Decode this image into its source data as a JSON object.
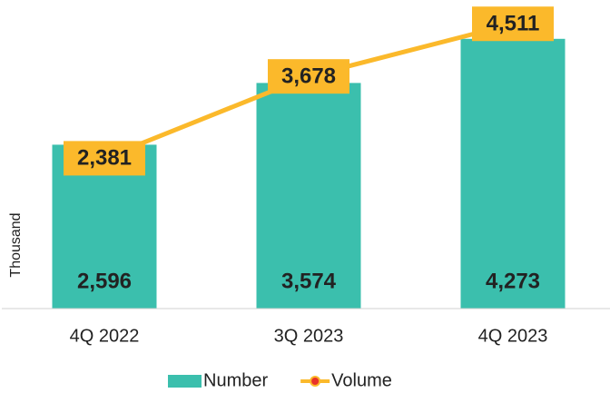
{
  "chart_data": {
    "type": "bar",
    "y_label": "Thousand",
    "categories": [
      "4Q 2022",
      "3Q 2023",
      "4Q 2023"
    ],
    "series": [
      {
        "name": "Number",
        "type": "bar",
        "color": "#3bbfad",
        "values": [
          2596,
          3574,
          4273
        ]
      },
      {
        "name": "Volume",
        "type": "line",
        "color": "#fbb92b",
        "marker_color": "#e8322a",
        "values": [
          2381,
          3678,
          4511
        ]
      }
    ],
    "ylim": [
      0,
      4500
    ],
    "legend": "bottom"
  }
}
